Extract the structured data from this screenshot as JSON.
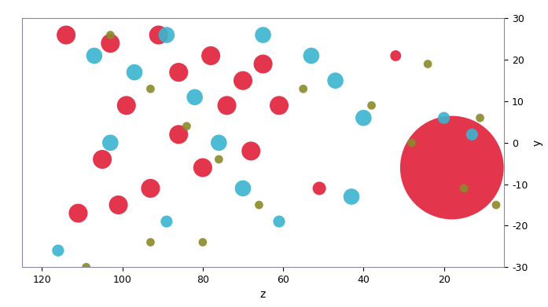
{
  "chart_data": {
    "type": "scatter",
    "x_label": "z",
    "y_label": "y",
    "xlim": [
      125,
      5
    ],
    "ylim": [
      -30,
      30
    ],
    "xticks": [
      120,
      100,
      80,
      60,
      40,
      20
    ],
    "yticks": [
      -30,
      -20,
      -10,
      0,
      10,
      20,
      30
    ],
    "grid": false,
    "series": [
      {
        "color": "#e0203a",
        "marker": "o",
        "x": [
          114,
          103,
          91,
          86,
          78,
          70,
          65,
          99,
          86,
          74,
          105,
          93,
          80,
          68,
          61,
          111,
          101,
          51,
          32,
          18
        ],
        "values": [
          26,
          24,
          26,
          17,
          21,
          15,
          19,
          9,
          2,
          9,
          -4,
          -11,
          -6,
          -2,
          9,
          -17,
          -15,
          -11,
          21,
          -6
        ],
        "sizes": [
          300,
          300,
          300,
          300,
          300,
          300,
          300,
          300,
          300,
          300,
          300,
          300,
          300,
          300,
          300,
          300,
          300,
          150,
          100,
          9000
        ]
      },
      {
        "color": "#3ab4d0",
        "marker": "o",
        "x": [
          107,
          97,
          89,
          82,
          76,
          70,
          65,
          53,
          47,
          43,
          40,
          20,
          13,
          103,
          89,
          116,
          61
        ],
        "values": [
          21,
          17,
          26,
          11,
          0,
          -11,
          26,
          21,
          15,
          -13,
          6,
          6,
          2,
          0,
          -19,
          -26,
          -19
        ],
        "sizes": [
          220,
          220,
          220,
          220,
          220,
          220,
          220,
          220,
          220,
          220,
          220,
          120,
          120,
          220,
          120,
          120,
          120
        ]
      },
      {
        "color": "#8a8a2a",
        "marker": "o",
        "x": [
          103,
          93,
          84,
          76,
          66,
          55,
          38,
          28,
          11,
          7,
          109,
          93,
          24,
          15,
          80
        ],
        "values": [
          26,
          13,
          4,
          -4,
          -15,
          13,
          9,
          0,
          6,
          -15,
          -30,
          -24,
          19,
          -11,
          -24
        ],
        "sizes": [
          60,
          60,
          60,
          60,
          60,
          60,
          60,
          60,
          60,
          60,
          60,
          60,
          60,
          60,
          60
        ]
      }
    ]
  }
}
